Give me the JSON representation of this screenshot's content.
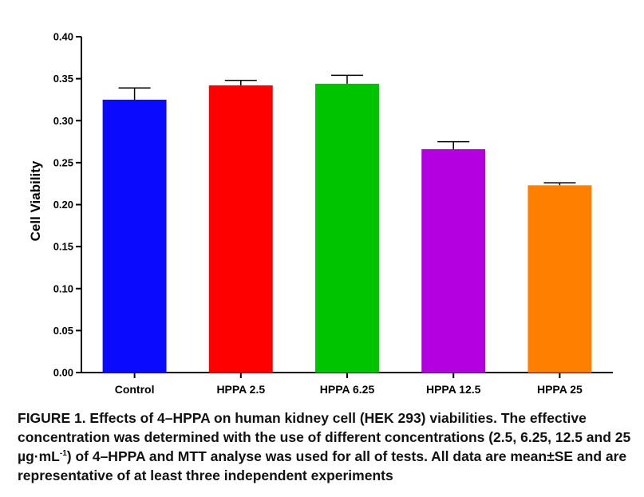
{
  "chart_data": {
    "type": "bar",
    "title": "",
    "xlabel": "",
    "ylabel": "Cell Viability",
    "ylim": [
      0,
      0.4
    ],
    "yticks": [
      "0.00",
      "0.05",
      "0.10",
      "0.15",
      "0.20",
      "0.25",
      "0.30",
      "0.35",
      "0.40"
    ],
    "grid": false,
    "error_bars": "mean ± SE (upper only)",
    "categories": [
      "Control",
      "HPPA 2.5",
      "HPPA 6.25",
      "HPPA 12.5",
      "HPPA 25"
    ],
    "values": [
      0.325,
      0.342,
      0.344,
      0.266,
      0.223
    ],
    "errors": [
      0.014,
      0.006,
      0.01,
      0.009,
      0.003
    ],
    "colors": [
      "#0a0aff",
      "#ff0000",
      "#00c400",
      "#b400e0",
      "#ff8000"
    ]
  },
  "caption": {
    "part1": "FIGURE 1. Effects of 4–HPPA on human kidney cell (HEK 293) viabilities. The effective concentration was determined with the use of different concentrations (2.5, 6.25, 12.5 and 25 µg·mL",
    "sup": "-1",
    "part2": ") of 4–HPPA and MTT analyse was used for all of tests. All data are mean±SE and are representative of at least three independent experiments"
  }
}
